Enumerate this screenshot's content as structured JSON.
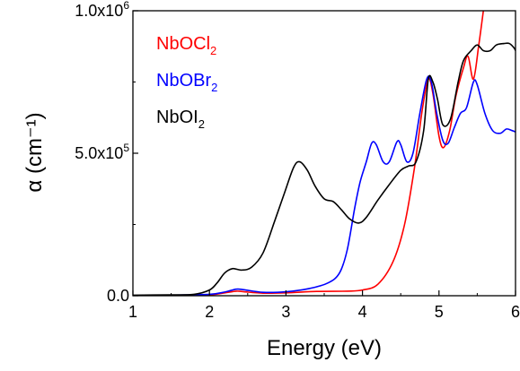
{
  "chart_data": {
    "type": "line",
    "xlabel": "Energy (eV)",
    "ylabel": "α (cm⁻¹)",
    "xlim": [
      1,
      6
    ],
    "ylim": [
      0,
      1000000
    ],
    "x_ticks": [
      {
        "value": 1,
        "label": "1"
      },
      {
        "value": 2,
        "label": "2"
      },
      {
        "value": 3,
        "label": "3"
      },
      {
        "value": 4,
        "label": "4"
      },
      {
        "value": 5,
        "label": "5"
      },
      {
        "value": 6,
        "label": "6"
      }
    ],
    "y_ticks": [
      {
        "value": 0,
        "base": "0.0",
        "exp": ""
      },
      {
        "value": 500000,
        "base": "5.0x10",
        "exp": "5"
      },
      {
        "value": 1000000,
        "base": "1.0x10",
        "exp": "6"
      }
    ],
    "legend_position": "top-left",
    "grid": false,
    "series": [
      {
        "base": "NbOCl",
        "sub": "2",
        "color": "#ff0000",
        "points": [
          [
            1,
            0
          ],
          [
            1.5,
            1000
          ],
          [
            2,
            3000
          ],
          [
            2.2,
            10000
          ],
          [
            2.35,
            16000
          ],
          [
            2.45,
            14000
          ],
          [
            2.7,
            9000
          ],
          [
            3,
            10000
          ],
          [
            3.4,
            15000
          ],
          [
            3.8,
            16000
          ],
          [
            4,
            20000
          ],
          [
            4.2,
            40000
          ],
          [
            4.4,
            120000
          ],
          [
            4.55,
            250000
          ],
          [
            4.68,
            450000
          ],
          [
            4.78,
            650000
          ],
          [
            4.86,
            760000
          ],
          [
            4.92,
            710000
          ],
          [
            5.0,
            560000
          ],
          [
            5.06,
            520000
          ],
          [
            5.14,
            580000
          ],
          [
            5.22,
            700000
          ],
          [
            5.32,
            800000
          ],
          [
            5.38,
            840000
          ],
          [
            5.45,
            760000
          ],
          [
            5.52,
            880000
          ],
          [
            5.58,
            1000000
          ]
        ]
      },
      {
        "base": "NbOBr",
        "sub": "2",
        "color": "#0000ff",
        "points": [
          [
            1,
            0
          ],
          [
            1.5,
            2000
          ],
          [
            2,
            5000
          ],
          [
            2.2,
            13000
          ],
          [
            2.35,
            23000
          ],
          [
            2.45,
            21000
          ],
          [
            2.7,
            12000
          ],
          [
            3,
            14000
          ],
          [
            3.3,
            25000
          ],
          [
            3.55,
            45000
          ],
          [
            3.7,
            80000
          ],
          [
            3.8,
            160000
          ],
          [
            3.9,
            310000
          ],
          [
            3.97,
            400000
          ],
          [
            4.05,
            470000
          ],
          [
            4.12,
            535000
          ],
          [
            4.18,
            530000
          ],
          [
            4.27,
            470000
          ],
          [
            4.35,
            470000
          ],
          [
            4.45,
            540000
          ],
          [
            4.5,
            530000
          ],
          [
            4.58,
            470000
          ],
          [
            4.66,
            500000
          ],
          [
            4.75,
            640000
          ],
          [
            4.84,
            760000
          ],
          [
            4.9,
            750000
          ],
          [
            4.97,
            640000
          ],
          [
            5.05,
            545000
          ],
          [
            5.12,
            535000
          ],
          [
            5.2,
            590000
          ],
          [
            5.28,
            640000
          ],
          [
            5.36,
            660000
          ],
          [
            5.45,
            750000
          ],
          [
            5.5,
            740000
          ],
          [
            5.6,
            640000
          ],
          [
            5.7,
            580000
          ],
          [
            5.8,
            570000
          ],
          [
            5.88,
            585000
          ],
          [
            5.95,
            580000
          ],
          [
            6,
            575000
          ]
        ]
      },
      {
        "base": "NbOI",
        "sub": "2",
        "color": "#000000",
        "points": [
          [
            1,
            2000
          ],
          [
            1.5,
            3000
          ],
          [
            1.8,
            5000
          ],
          [
            2,
            20000
          ],
          [
            2.1,
            45000
          ],
          [
            2.2,
            80000
          ],
          [
            2.3,
            95000
          ],
          [
            2.42,
            90000
          ],
          [
            2.55,
            100000
          ],
          [
            2.7,
            150000
          ],
          [
            2.85,
            260000
          ],
          [
            2.98,
            360000
          ],
          [
            3.1,
            450000
          ],
          [
            3.18,
            470000
          ],
          [
            3.28,
            440000
          ],
          [
            3.38,
            385000
          ],
          [
            3.5,
            340000
          ],
          [
            3.62,
            330000
          ],
          [
            3.73,
            300000
          ],
          [
            3.83,
            270000
          ],
          [
            3.95,
            255000
          ],
          [
            4.05,
            275000
          ],
          [
            4.2,
            335000
          ],
          [
            4.35,
            390000
          ],
          [
            4.5,
            440000
          ],
          [
            4.6,
            455000
          ],
          [
            4.7,
            470000
          ],
          [
            4.8,
            580000
          ],
          [
            4.86,
            760000
          ],
          [
            4.92,
            750000
          ],
          [
            4.98,
            690000
          ],
          [
            5.05,
            600000
          ],
          [
            5.15,
            620000
          ],
          [
            5.25,
            750000
          ],
          [
            5.32,
            825000
          ],
          [
            5.42,
            860000
          ],
          [
            5.5,
            880000
          ],
          [
            5.58,
            860000
          ],
          [
            5.67,
            860000
          ],
          [
            5.75,
            880000
          ],
          [
            5.85,
            885000
          ],
          [
            5.92,
            885000
          ],
          [
            5.98,
            870000
          ],
          [
            6,
            860000
          ]
        ]
      }
    ]
  }
}
